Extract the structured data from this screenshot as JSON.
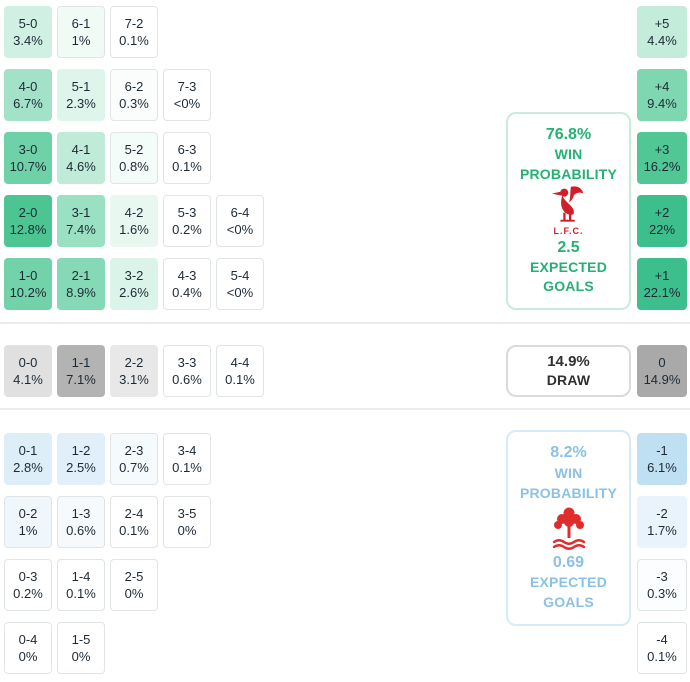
{
  "sections": {
    "home": {
      "rows": [
        [
          {
            "score": "5-0",
            "pct": "3.4%",
            "bg": "#cff0e2"
          },
          {
            "score": "6-1",
            "pct": "1%",
            "bg": "#f0fbf6"
          },
          {
            "score": "7-2",
            "pct": "0.1%",
            "bg": "#ffffff"
          }
        ],
        [
          {
            "score": "4-0",
            "pct": "6.7%",
            "bg": "#a3e2c8"
          },
          {
            "score": "5-1",
            "pct": "2.3%",
            "bg": "#def5eb"
          },
          {
            "score": "6-2",
            "pct": "0.3%",
            "bg": "#fafdfc"
          },
          {
            "score": "7-3",
            "pct": "<0%",
            "bg": "#ffffff"
          }
        ],
        [
          {
            "score": "3-0",
            "pct": "10.7%",
            "bg": "#6fd1a8"
          },
          {
            "score": "4-1",
            "pct": "4.6%",
            "bg": "#c0ebd9"
          },
          {
            "score": "5-2",
            "pct": "0.8%",
            "bg": "#f3fcf8"
          },
          {
            "score": "6-3",
            "pct": "0.1%",
            "bg": "#ffffff"
          }
        ],
        [
          {
            "score": "2-0",
            "pct": "12.8%",
            "bg": "#4cc593"
          },
          {
            "score": "3-1",
            "pct": "7.4%",
            "bg": "#9ae0c3"
          },
          {
            "score": "4-2",
            "pct": "1.6%",
            "bg": "#e8f8f1"
          },
          {
            "score": "5-3",
            "pct": "0.2%",
            "bg": "#ffffff"
          },
          {
            "score": "6-4",
            "pct": "<0%",
            "bg": "#ffffff"
          }
        ],
        [
          {
            "score": "1-0",
            "pct": "10.2%",
            "bg": "#72d2aa"
          },
          {
            "score": "2-1",
            "pct": "8.9%",
            "bg": "#86d9b6"
          },
          {
            "score": "3-2",
            "pct": "2.6%",
            "bg": "#daf4e9"
          },
          {
            "score": "4-3",
            "pct": "0.4%",
            "bg": "#ffffff"
          },
          {
            "score": "5-4",
            "pct": "<0%",
            "bg": "#ffffff"
          }
        ]
      ]
    },
    "draw": {
      "row": [
        {
          "score": "0-0",
          "pct": "4.1%",
          "bg": "#e0e0e0"
        },
        {
          "score": "1-1",
          "pct": "7.1%",
          "bg": "#b3b3b3"
        },
        {
          "score": "2-2",
          "pct": "3.1%",
          "bg": "#e8e8e8"
        },
        {
          "score": "3-3",
          "pct": "0.6%",
          "bg": "#ffffff"
        },
        {
          "score": "4-4",
          "pct": "0.1%",
          "bg": "#ffffff"
        }
      ]
    },
    "away": {
      "rows": [
        [
          {
            "score": "0-1",
            "pct": "2.8%",
            "bg": "#ddeef9"
          },
          {
            "score": "1-2",
            "pct": "2.5%",
            "bg": "#e0eff9"
          },
          {
            "score": "2-3",
            "pct": "0.7%",
            "bg": "#f5fafd"
          },
          {
            "score": "3-4",
            "pct": "0.1%",
            "bg": "#ffffff"
          }
        ],
        [
          {
            "score": "0-2",
            "pct": "1%",
            "bg": "#eff6fc"
          },
          {
            "score": "1-3",
            "pct": "0.6%",
            "bg": "#f6fafd"
          },
          {
            "score": "2-4",
            "pct": "0.1%",
            "bg": "#ffffff"
          },
          {
            "score": "3-5",
            "pct": "0%",
            "bg": "#ffffff"
          }
        ],
        [
          {
            "score": "0-3",
            "pct": "0.2%",
            "bg": "#ffffff"
          },
          {
            "score": "1-4",
            "pct": "0.1%",
            "bg": "#ffffff"
          },
          {
            "score": "2-5",
            "pct": "0%",
            "bg": "#ffffff"
          }
        ],
        [
          {
            "score": "0-4",
            "pct": "0%",
            "bg": "#ffffff"
          },
          {
            "score": "1-5",
            "pct": "0%",
            "bg": "#ffffff"
          }
        ]
      ]
    }
  },
  "goal_diff": [
    {
      "label": "+5",
      "pct": "4.4%",
      "bg": "#c3ecdb"
    },
    {
      "label": "+4",
      "pct": "9.4%",
      "bg": "#7fd7b2"
    },
    {
      "label": "+3",
      "pct": "16.2%",
      "bg": "#50c795"
    },
    {
      "label": "+2",
      "pct": "22%",
      "bg": "#3cbf8c"
    },
    {
      "label": "+1",
      "pct": "22.1%",
      "bg": "#3cbf8c"
    },
    {
      "label": "0",
      "pct": "14.9%",
      "bg": "#a9a9a9"
    },
    {
      "label": "-1",
      "pct": "6.1%",
      "bg": "#bfdff2"
    },
    {
      "label": "-2",
      "pct": "1.7%",
      "bg": "#e8f3fb"
    },
    {
      "label": "-3",
      "pct": "0.3%",
      "bg": "#fbfdfe"
    },
    {
      "label": "-4",
      "pct": "0.1%",
      "bg": "#ffffff"
    }
  ],
  "cards": {
    "home": {
      "win_pct": "76.8%",
      "win_line1": "WIN",
      "win_line2": "PROBABILITY",
      "team_abbr": "L.F.C.",
      "xg": "2.5",
      "xg_line1": "EXPECTED",
      "xg_line2": "GOALS",
      "accent": "#25b174",
      "border": "#c7ecdb"
    },
    "draw_card": {
      "pct": "14.9%",
      "label": "DRAW",
      "accent": "#303030",
      "border": "#dadada"
    },
    "away": {
      "win_pct": "8.2%",
      "win_line1": "WIN",
      "win_line2": "PROBABILITY",
      "xg": "0.69",
      "xg_line1": "EXPECTED",
      "xg_line2": "GOALS",
      "accent": "#8ac1e4",
      "border": "#d7eaf7"
    }
  },
  "chart_data": {
    "type": "heatmap",
    "description": "Correct-score probability matrix with goal-difference distribution and outcome summary",
    "home_win_cells": [
      {
        "score": "5-0",
        "pct": 3.4
      },
      {
        "score": "6-1",
        "pct": 1.0
      },
      {
        "score": "7-2",
        "pct": 0.1
      },
      {
        "score": "4-0",
        "pct": 6.7
      },
      {
        "score": "5-1",
        "pct": 2.3
      },
      {
        "score": "6-2",
        "pct": 0.3
      },
      {
        "score": "7-3",
        "pct": "<0"
      },
      {
        "score": "3-0",
        "pct": 10.7
      },
      {
        "score": "4-1",
        "pct": 4.6
      },
      {
        "score": "5-2",
        "pct": 0.8
      },
      {
        "score": "6-3",
        "pct": 0.1
      },
      {
        "score": "2-0",
        "pct": 12.8
      },
      {
        "score": "3-1",
        "pct": 7.4
      },
      {
        "score": "4-2",
        "pct": 1.6
      },
      {
        "score": "5-3",
        "pct": 0.2
      },
      {
        "score": "6-4",
        "pct": "<0"
      },
      {
        "score": "1-0",
        "pct": 10.2
      },
      {
        "score": "2-1",
        "pct": 8.9
      },
      {
        "score": "3-2",
        "pct": 2.6
      },
      {
        "score": "4-3",
        "pct": 0.4
      },
      {
        "score": "5-4",
        "pct": "<0"
      }
    ],
    "draw_cells": [
      {
        "score": "0-0",
        "pct": 4.1
      },
      {
        "score": "1-1",
        "pct": 7.1
      },
      {
        "score": "2-2",
        "pct": 3.1
      },
      {
        "score": "3-3",
        "pct": 0.6
      },
      {
        "score": "4-4",
        "pct": 0.1
      }
    ],
    "away_win_cells": [
      {
        "score": "0-1",
        "pct": 2.8
      },
      {
        "score": "1-2",
        "pct": 2.5
      },
      {
        "score": "2-3",
        "pct": 0.7
      },
      {
        "score": "3-4",
        "pct": 0.1
      },
      {
        "score": "0-2",
        "pct": 1.0
      },
      {
        "score": "1-3",
        "pct": 0.6
      },
      {
        "score": "2-4",
        "pct": 0.1
      },
      {
        "score": "3-5",
        "pct": 0
      },
      {
        "score": "0-3",
        "pct": 0.2
      },
      {
        "score": "1-4",
        "pct": 0.1
      },
      {
        "score": "2-5",
        "pct": 0
      },
      {
        "score": "0-4",
        "pct": 0
      },
      {
        "score": "1-5",
        "pct": 0
      }
    ],
    "goal_difference": [
      {
        "diff": "+5",
        "pct": 4.4
      },
      {
        "diff": "+4",
        "pct": 9.4
      },
      {
        "diff": "+3",
        "pct": 16.2
      },
      {
        "diff": "+2",
        "pct": 22
      },
      {
        "diff": "+1",
        "pct": 22.1
      },
      {
        "diff": "0",
        "pct": 14.9
      },
      {
        "diff": "-1",
        "pct": 6.1
      },
      {
        "diff": "-2",
        "pct": 1.7
      },
      {
        "diff": "-3",
        "pct": 0.3
      },
      {
        "diff": "-4",
        "pct": 0.1
      }
    ],
    "summary": {
      "home_team_abbr": "L.F.C.",
      "home_win_pct": 76.8,
      "home_expected_goals": 2.5,
      "draw_pct": 14.9,
      "away_win_pct": 8.2,
      "away_expected_goals": 0.69
    }
  }
}
